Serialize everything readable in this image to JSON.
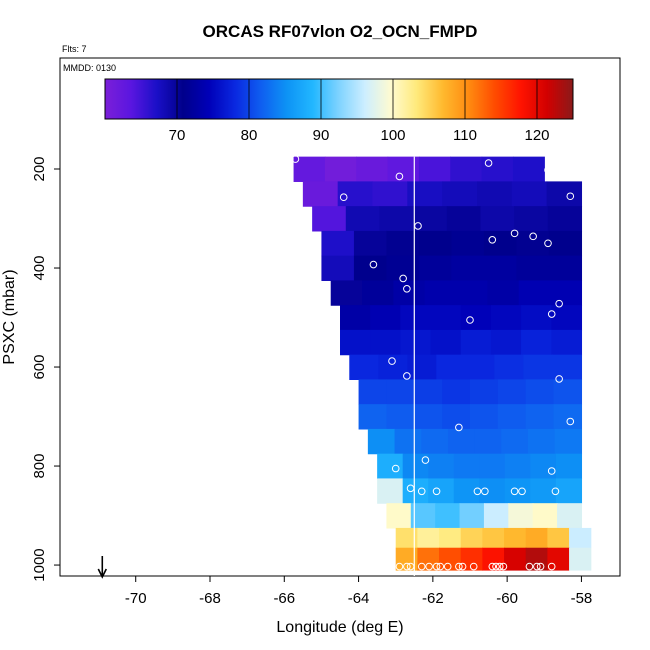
{
  "chart_data": {
    "type": "heatmap",
    "title": "ORCAS RF07vlon O2_OCN_FMPD",
    "flts_label": "Flts: 7",
    "mmdd_label": "MMDD: 0130",
    "xlabel": "Longitude (deg E)",
    "ylabel": "PSXC (mbar)",
    "xlim": [
      -71.5,
      -57.5
    ],
    "ylim": [
      1010,
      0
    ],
    "x_ticks": [
      -70,
      -68,
      -66,
      -64,
      -62,
      -60,
      -58
    ],
    "x_tick_labels": [
      "-70",
      "-68",
      "-66",
      "-64",
      "-62",
      "-60",
      "-58"
    ],
    "y_ticks": [
      200,
      400,
      600,
      800,
      1000
    ],
    "y_tick_labels": [
      "200",
      "400",
      "600",
      "800",
      "1000"
    ],
    "colorbar": {
      "range": [
        60,
        125
      ],
      "ticks": [
        70,
        80,
        90,
        100,
        110,
        120
      ],
      "tick_labels": [
        "70",
        "80",
        "90",
        "100",
        "110",
        "120"
      ],
      "colors": [
        "#7b1fd8",
        "#5a16e0",
        "#1a0fc7",
        "#00008b",
        "#0000b8",
        "#0a28e0",
        "#0f5ef0",
        "#0d93f5",
        "#22b7ff",
        "#7fd3ff",
        "#cdeeff",
        "#fffbd0",
        "#ffe97a",
        "#ffb92e",
        "#ff8a10",
        "#ff4b00",
        "#ff1300",
        "#d20000",
        "#8b1a1a"
      ]
    },
    "reference_line_lon": -62.5,
    "arrow_lon": -70.9,
    "cell_rows": [
      {
        "p_top": 175,
        "p_bot": 225,
        "lon_min": -65.75,
        "lon_max": -59.0,
        "values": [
          62.5,
          61.0,
          62.0,
          63.0,
          64.5,
          66.0,
          66.5,
          67.0
        ]
      },
      {
        "p_top": 225,
        "p_bot": 275,
        "lon_min": -65.5,
        "lon_max": -58.0,
        "values": [
          62.0,
          66.5,
          66.0,
          67.5,
          68.0,
          68.5,
          68.0,
          69.0
        ]
      },
      {
        "p_top": 275,
        "p_bot": 325,
        "lon_min": -65.25,
        "lon_max": -58.0,
        "values": [
          64.0,
          68.5,
          69.0,
          69.5,
          70.0,
          69.0,
          69.5,
          70.0
        ]
      },
      {
        "p_top": 325,
        "p_bot": 375,
        "lon_min": -65.0,
        "lon_max": -58.0,
        "values": [
          67.0,
          70.0,
          70.5,
          71.0,
          71.5,
          71.0,
          70.5,
          71.0
        ]
      },
      {
        "p_top": 375,
        "p_bot": 425,
        "lon_min": -65.0,
        "lon_max": -58.0,
        "values": [
          68.0,
          71.0,
          71.5,
          72.0,
          72.5,
          72.5,
          72.0,
          72.0
        ]
      },
      {
        "p_top": 425,
        "p_bot": 475,
        "lon_min": -64.75,
        "lon_max": -58.0,
        "values": [
          70.0,
          72.0,
          73.0,
          73.5,
          73.5,
          73.0,
          74.0,
          74.0
        ]
      },
      {
        "p_top": 475,
        "p_bot": 525,
        "lon_min": -64.5,
        "lon_max": -58.0,
        "values": [
          73.0,
          74.0,
          75.0,
          75.0,
          74.5,
          75.0,
          75.5,
          75.0
        ]
      },
      {
        "p_top": 525,
        "p_bot": 575,
        "lon_min": -64.5,
        "lon_max": -58.0,
        "values": [
          76.0,
          76.0,
          76.5,
          76.0,
          77.0,
          76.5,
          77.5,
          77.0
        ]
      },
      {
        "p_top": 575,
        "p_bot": 625,
        "lon_min": -64.25,
        "lon_max": -58.0,
        "values": [
          78.0,
          77.5,
          77.0,
          78.0,
          78.0,
          78.5,
          79.0,
          79.0
        ]
      },
      {
        "p_top": 625,
        "p_bot": 675,
        "lon_min": -64.0,
        "lon_max": -58.0,
        "values": [
          80.0,
          80.0,
          79.5,
          79.0,
          79.5,
          80.0,
          80.5,
          81.0
        ]
      },
      {
        "p_top": 675,
        "p_bot": 725,
        "lon_min": -64.0,
        "lon_max": -58.0,
        "values": [
          82.0,
          81.5,
          81.0,
          80.5,
          81.0,
          81.5,
          82.0,
          82.5
        ]
      },
      {
        "p_top": 725,
        "p_bot": 775,
        "lon_min": -63.75,
        "lon_max": -58.0,
        "values": [
          85.0,
          83.0,
          82.5,
          82.0,
          82.0,
          82.5,
          83.0,
          83.5
        ]
      },
      {
        "p_top": 775,
        "p_bot": 825,
        "lon_min": -63.5,
        "lon_max": -58.0,
        "values": [
          88.0,
          84.5,
          84.0,
          83.5,
          83.5,
          84.0,
          84.5,
          85.0
        ]
      },
      {
        "p_top": 825,
        "p_bot": 875,
        "lon_min": -63.5,
        "lon_max": -58.0,
        "values": [
          97.0,
          88.0,
          87.0,
          85.5,
          85.0,
          85.5,
          86.0,
          87.0
        ]
      },
      {
        "p_top": 875,
        "p_bot": 925,
        "lon_min": -63.25,
        "lon_max": -58.0,
        "values": [
          100.0,
          91.0,
          90.0,
          92.0,
          96.0,
          99.0,
          100.0,
          97.0
        ]
      },
      {
        "p_top": 925,
        "p_bot": 965,
        "lon_min": -63.0,
        "lon_max": -57.75,
        "values": [
          104.0,
          102.0,
          103.0,
          105.0,
          106.0,
          107.0,
          108.0,
          106.0,
          96.0
        ]
      },
      {
        "p_top": 965,
        "p_bot": 1010,
        "lon_min": -63.0,
        "lon_max": -57.75,
        "values": [
          108.0,
          112.0,
          114.0,
          116.0,
          118.0,
          121.0,
          123.0,
          120.0,
          97.0
        ]
      }
    ],
    "points": [
      [
        -65.7,
        180
      ],
      [
        -62.9,
        215
      ],
      [
        -60.5,
        188
      ],
      [
        -58.9,
        202
      ],
      [
        -64.4,
        257
      ],
      [
        -58.3,
        255
      ],
      [
        -62.4,
        315
      ],
      [
        -59.8,
        330
      ],
      [
        -59.3,
        336
      ],
      [
        -60.4,
        343
      ],
      [
        -58.9,
        350
      ],
      [
        -63.6,
        393
      ],
      [
        -62.8,
        421
      ],
      [
        -62.7,
        442
      ],
      [
        -58.6,
        472
      ],
      [
        -58.8,
        493
      ],
      [
        -61.0,
        505
      ],
      [
        -63.1,
        588
      ],
      [
        -62.7,
        618
      ],
      [
        -58.6,
        624
      ],
      [
        -58.3,
        710
      ],
      [
        -61.3,
        722
      ],
      [
        -62.2,
        788
      ],
      [
        -63.0,
        805
      ],
      [
        -58.8,
        810
      ],
      [
        -62.6,
        845
      ],
      [
        -62.3,
        851
      ],
      [
        -61.9,
        851
      ],
      [
        -60.8,
        851
      ],
      [
        -60.6,
        851
      ],
      [
        -59.8,
        851
      ],
      [
        -59.6,
        851
      ],
      [
        -58.7,
        851
      ],
      [
        -62.9,
        1003
      ],
      [
        -62.7,
        1003
      ],
      [
        -62.6,
        1003
      ],
      [
        -62.3,
        1003
      ],
      [
        -62.1,
        1003
      ],
      [
        -61.9,
        1003
      ],
      [
        -61.8,
        1003
      ],
      [
        -61.6,
        1003
      ],
      [
        -61.3,
        1003
      ],
      [
        -61.2,
        1003
      ],
      [
        -60.9,
        1003
      ],
      [
        -60.4,
        1003
      ],
      [
        -60.3,
        1003
      ],
      [
        -60.2,
        1003
      ],
      [
        -60.1,
        1003
      ],
      [
        -59.4,
        1003
      ],
      [
        -59.2,
        1003
      ],
      [
        -59.1,
        1003
      ],
      [
        -58.8,
        1003
      ]
    ]
  }
}
